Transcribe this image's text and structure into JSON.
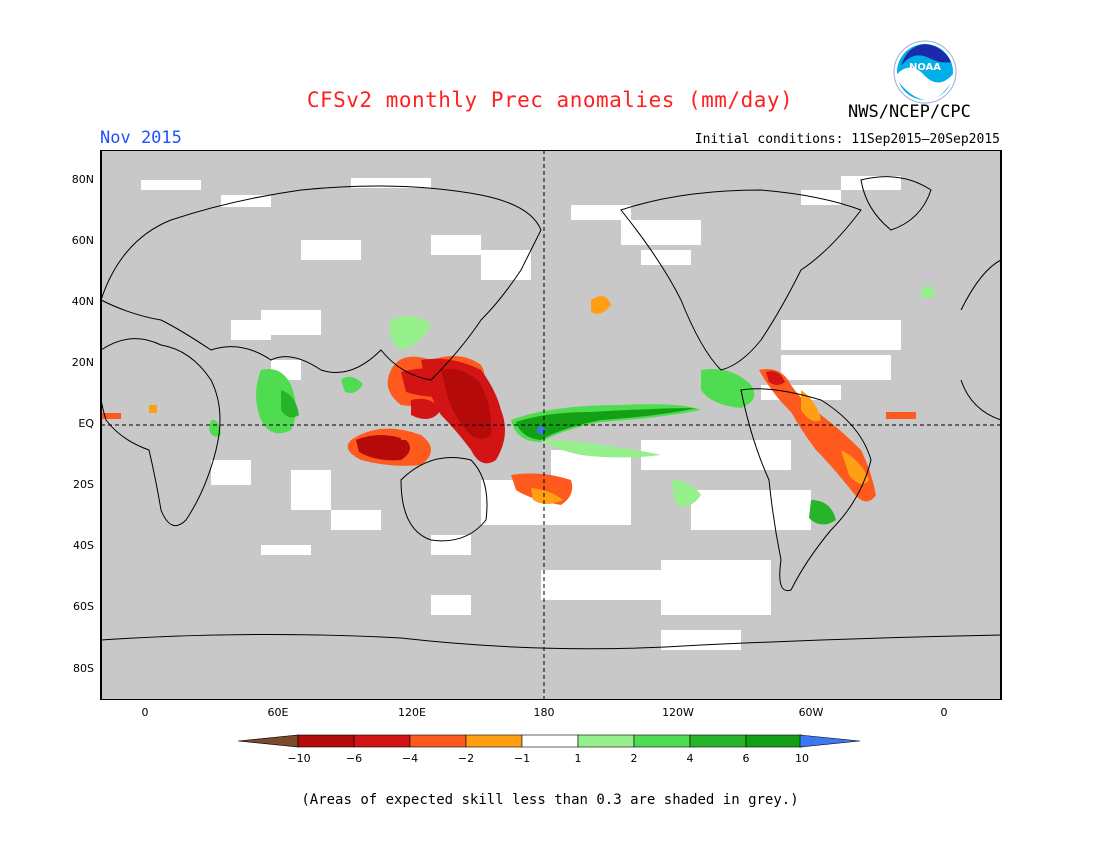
{
  "title": "CFSv2 monthly Prec anomalies (mm/day)",
  "valid_month": "Nov 2015",
  "initial_conditions": "Initial conditions: 11Sep2015–20Sep2015",
  "agency": "NWS/NCEP/CPC",
  "logo_text": "NOAA",
  "footnote": "(Areas of expected skill less than 0.3 are shaded in grey.)",
  "lat_labels": [
    "80N",
    "60N",
    "40N",
    "20N",
    "EQ",
    "20S",
    "40S",
    "60S",
    "80S"
  ],
  "lon_labels": [
    "0",
    "60E",
    "120E",
    "180",
    "120W",
    "60W",
    "0"
  ],
  "colorbar": {
    "labels": [
      "−10",
      "−6",
      "−4",
      "−2",
      "−1",
      "1",
      "2",
      "4",
      "6",
      "10"
    ],
    "colors": [
      "#7a4a2a",
      "#b40a0a",
      "#d21414",
      "#ff5a1e",
      "#ffa014",
      "#ffffff",
      "#96f08c",
      "#50dc50",
      "#28b428",
      "#14a014",
      "#3c78f0"
    ]
  },
  "map_colors": {
    "grey": "#c8c8c8",
    "white": "#ffffff"
  }
}
